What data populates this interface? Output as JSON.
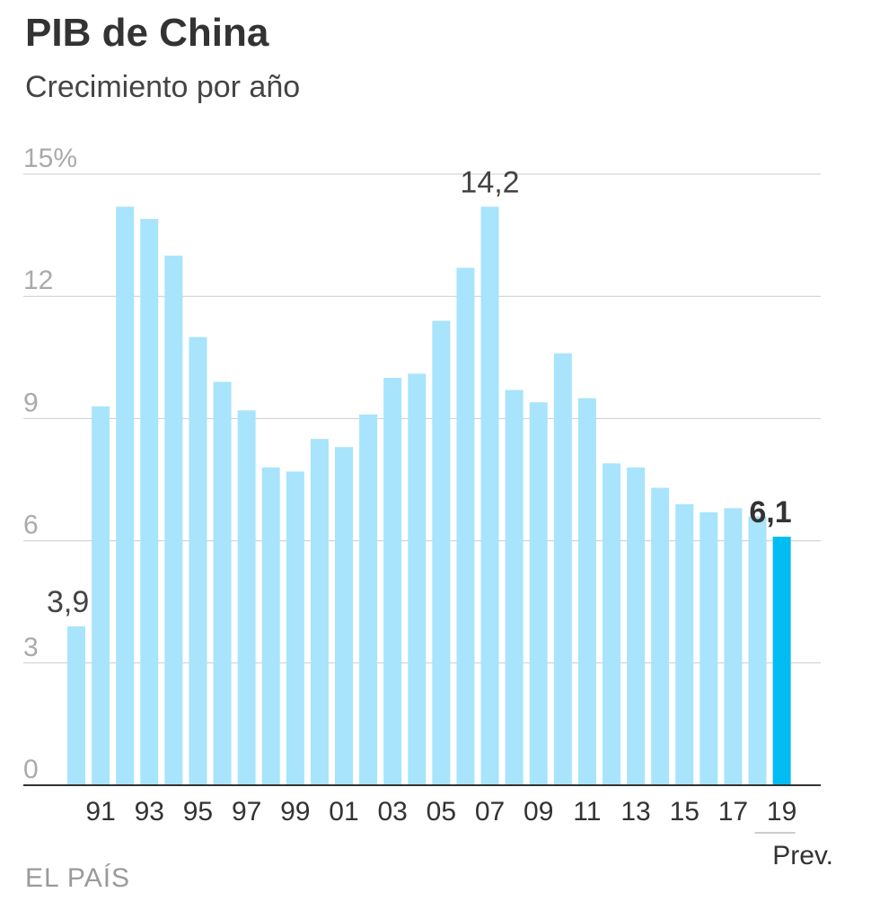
{
  "chart_data": {
    "type": "bar",
    "title": "PIB de China",
    "subtitle": "Crecimiento por año",
    "source": "EL PAÍS",
    "ylim": [
      0,
      15
    ],
    "yticks": [
      0,
      3,
      6,
      9,
      12,
      15
    ],
    "ytick_labels": [
      "0",
      "3",
      "6",
      "9",
      "12",
      "15%"
    ],
    "grid": true,
    "x": [
      "1990",
      "1991",
      "1992",
      "1993",
      "1994",
      "1995",
      "1996",
      "1997",
      "1998",
      "1999",
      "2000",
      "2001",
      "2002",
      "2003",
      "2004",
      "2005",
      "2006",
      "2007",
      "2008",
      "2009",
      "2010",
      "2011",
      "2012",
      "2013",
      "2014",
      "2015",
      "2016",
      "2017",
      "2018",
      "2019"
    ],
    "xtick_labels": [
      "",
      "91",
      "",
      "93",
      "",
      "95",
      "",
      "97",
      "",
      "99",
      "",
      "01",
      "",
      "03",
      "",
      "05",
      "",
      "07",
      "",
      "09",
      "",
      "11",
      "",
      "13",
      "",
      "15",
      "",
      "17",
      "",
      "19"
    ],
    "values": [
      3.9,
      9.3,
      14.2,
      13.9,
      13.0,
      11.0,
      9.9,
      9.2,
      7.8,
      7.7,
      8.5,
      8.3,
      9.1,
      10.0,
      10.1,
      11.4,
      12.7,
      14.2,
      9.7,
      9.4,
      10.6,
      9.5,
      7.9,
      7.8,
      7.3,
      6.9,
      6.7,
      6.8,
      6.6,
      6.1
    ],
    "data_labels": [
      {
        "index": 0,
        "text": "3,9"
      },
      {
        "index": 17,
        "text": "14,2"
      },
      {
        "index": 29,
        "text": "6,1",
        "bold": true
      }
    ],
    "forecast_index": 29,
    "forecast_note": "Prev.",
    "colors": {
      "bar": "#a8e4fb",
      "forecast_bar": "#00bcf2",
      "grid": "#cccccc",
      "axis": "#333333"
    }
  }
}
